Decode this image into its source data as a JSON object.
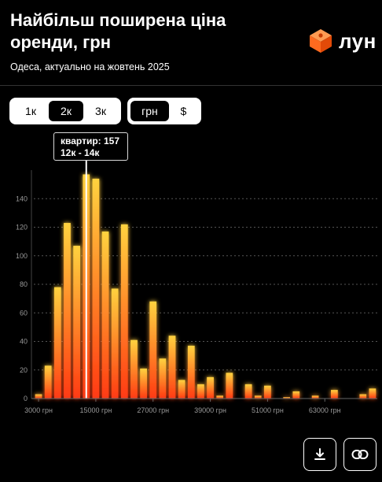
{
  "header": {
    "title": "Найбільш поширена ціна оренди, грн",
    "subtitle": "Одеса, актуально на жовтень 2025",
    "logo_text": "лун"
  },
  "controls": {
    "step_options": [
      {
        "label": "1к",
        "active": false
      },
      {
        "label": "2к",
        "active": true
      },
      {
        "label": "3к",
        "active": false
      }
    ],
    "currency_options": [
      {
        "label": "грн",
        "active": true
      },
      {
        "label": "$",
        "active": false
      }
    ]
  },
  "tooltip": {
    "line1": "квартир: 157",
    "line2": "12к - 14к"
  },
  "actions": {
    "download_icon": "download-icon",
    "link_icon": "link-icon"
  },
  "colors": {
    "bar_top": "#ffd23f",
    "bar_bottom": "#ff3a12",
    "highlight": "#ffffff",
    "logo": "#ff6a1f"
  },
  "chart_data": {
    "type": "bar",
    "x_unit": "грн",
    "bin_width": 2000,
    "x_start": 2000,
    "values": [
      3,
      23,
      78,
      123,
      107,
      157,
      154,
      117,
      77,
      122,
      41,
      21,
      68,
      28,
      44,
      13,
      37,
      10,
      15,
      2,
      18,
      0,
      10,
      2,
      9,
      0,
      1,
      5,
      0,
      2,
      0,
      6,
      0,
      0,
      3,
      7
    ],
    "highlight_index": 5,
    "y_ticks": [
      0,
      20,
      40,
      60,
      80,
      100,
      120,
      140
    ],
    "ylim": [
      0,
      160
    ],
    "x_tick_values": [
      3000,
      15000,
      27000,
      39000,
      51000,
      63000
    ],
    "x_tick_labels": [
      "3000 грн",
      "15000 грн",
      "27000 грн",
      "39000 грн",
      "51000 грн",
      "63000 грн"
    ],
    "grid": true
  }
}
